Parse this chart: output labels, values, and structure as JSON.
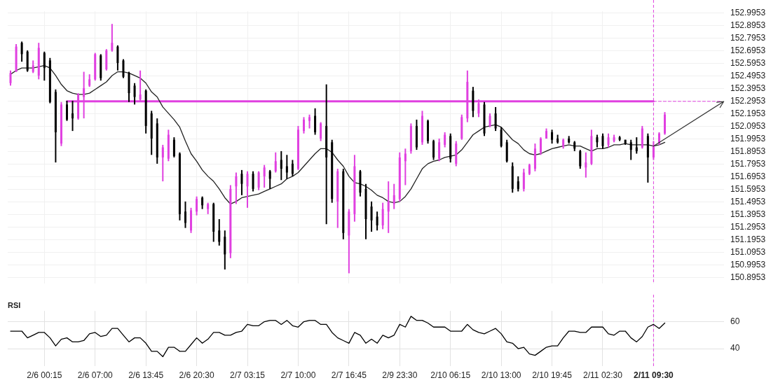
{
  "chart_data": [
    {
      "type": "candlestick",
      "categories": [
        null,
        null,
        null,
        null,
        null,
        null,
        "2/6 00:15",
        null,
        null,
        null,
        null,
        null,
        null,
        null,
        null,
        "2/6 07:00",
        null,
        null,
        null,
        null,
        null,
        null,
        null,
        null,
        "2/6 13:45",
        null,
        null,
        null,
        null,
        null,
        null,
        null,
        null,
        "2/6 20:30",
        null,
        null,
        null,
        null,
        null,
        null,
        null,
        null,
        "2/7 03:15",
        null,
        null,
        null,
        null,
        null,
        null,
        null,
        null,
        "2/7 10:00",
        null,
        null,
        null,
        null,
        null,
        null,
        null,
        null,
        "2/7 16:45",
        null,
        null,
        null,
        null,
        null,
        null,
        null,
        null,
        "2/9 23:30",
        null,
        null,
        null,
        null,
        null,
        null,
        null,
        null,
        "2/10 06:15",
        null,
        null,
        null,
        null,
        null,
        null,
        null,
        null,
        "2/10 13:00",
        null,
        null,
        null,
        null,
        null,
        null,
        null,
        null,
        "2/10 19:45",
        null,
        null,
        null,
        null,
        null,
        null,
        null,
        null,
        "2/11 02:30",
        null,
        null,
        null,
        null,
        null,
        null,
        null,
        null,
        "2/11 09:30",
        null,
        null,
        null,
        null,
        null,
        null,
        null,
        null,
        null,
        null,
        null,
        null
      ],
      "ohlc": [
        [
          152.44,
          152.54,
          152.42,
          152.52
        ],
        [
          152.53,
          152.75,
          152.53,
          152.73
        ],
        [
          152.76,
          152.77,
          152.61,
          152.67
        ],
        [
          152.69,
          152.7,
          152.53,
          152.54
        ],
        [
          152.53,
          152.62,
          152.52,
          152.58
        ],
        [
          152.5,
          152.76,
          152.47,
          152.72
        ],
        [
          152.68,
          152.69,
          152.46,
          152.56
        ],
        [
          152.62,
          152.64,
          152.28,
          152.29
        ],
        [
          152.37,
          152.39,
          151.81,
          152.05
        ],
        [
          151.96,
          152.29,
          151.94,
          152.27
        ],
        [
          152.27,
          152.3,
          152.14,
          152.15
        ],
        [
          152.2,
          152.3,
          152.06,
          152.16
        ],
        [
          152.16,
          152.36,
          152.15,
          152.35
        ],
        [
          152.33,
          152.53,
          152.16,
          152.4
        ],
        [
          152.42,
          152.51,
          152.41,
          152.47
        ],
        [
          152.47,
          152.68,
          152.46,
          152.67
        ],
        [
          152.66,
          152.67,
          152.46,
          152.48
        ],
        [
          152.55,
          152.71,
          152.54,
          152.7
        ],
        [
          152.7,
          152.91,
          152.69,
          152.76
        ],
        [
          152.73,
          152.74,
          152.54,
          152.6
        ],
        [
          152.62,
          152.63,
          152.48,
          152.49
        ],
        [
          152.52,
          152.53,
          152.29,
          152.36
        ],
        [
          152.42,
          152.44,
          152.27,
          152.33
        ],
        [
          152.31,
          152.54,
          152.29,
          152.35
        ],
        [
          152.38,
          152.39,
          152.04,
          152.1
        ],
        [
          152.2,
          152.22,
          151.87,
          152.0
        ],
        [
          152.12,
          152.16,
          151.8,
          151.85
        ],
        [
          151.85,
          151.95,
          151.66,
          151.93
        ],
        [
          151.84,
          152.07,
          151.82,
          152.03
        ],
        [
          151.99,
          152.01,
          151.85,
          151.86
        ],
        [
          151.88,
          151.89,
          151.35,
          151.4
        ],
        [
          151.42,
          151.5,
          151.29,
          151.33
        ],
        [
          151.27,
          151.45,
          151.25,
          151.43
        ],
        [
          151.42,
          151.54,
          151.39,
          151.52
        ],
        [
          151.53,
          151.54,
          151.44,
          151.47
        ],
        [
          151.44,
          151.49,
          151.4,
          151.48
        ],
        [
          151.48,
          151.49,
          151.18,
          151.26
        ],
        [
          151.27,
          151.36,
          151.15,
          151.18
        ],
        [
          151.22,
          151.27,
          150.96,
          151.08
        ],
        [
          151.09,
          151.63,
          151.05,
          151.6
        ],
        [
          151.62,
          151.73,
          151.48,
          151.7
        ],
        [
          151.72,
          151.75,
          151.55,
          151.64
        ],
        [
          151.62,
          151.74,
          151.45,
          151.72
        ],
        [
          151.72,
          151.74,
          151.58,
          151.6
        ],
        [
          151.61,
          151.74,
          151.59,
          151.73
        ],
        [
          151.7,
          151.79,
          151.61,
          151.77
        ],
        [
          151.74,
          151.75,
          151.6,
          151.68
        ],
        [
          151.74,
          151.89,
          151.73,
          151.82
        ],
        [
          151.83,
          151.9,
          151.67,
          151.76
        ],
        [
          151.78,
          151.87,
          151.68,
          151.73
        ],
        [
          151.8,
          151.83,
          151.7,
          151.72
        ],
        [
          151.76,
          152.1,
          151.75,
          152.07
        ],
        [
          152.06,
          152.17,
          152.04,
          152.15
        ],
        [
          152.14,
          152.19,
          152.08,
          152.17
        ],
        [
          152.18,
          152.24,
          152.03,
          152.05
        ],
        [
          152.0,
          152.13,
          151.98,
          152.12
        ],
        [
          152.1,
          152.43,
          151.32,
          151.85
        ],
        [
          151.97,
          151.99,
          151.49,
          151.52
        ],
        [
          151.5,
          151.76,
          151.29,
          151.74
        ],
        [
          151.74,
          151.76,
          151.2,
          151.25
        ],
        [
          151.23,
          151.44,
          150.93,
          151.42
        ],
        [
          151.4,
          151.87,
          151.34,
          151.78
        ],
        [
          151.74,
          151.75,
          151.54,
          151.57
        ],
        [
          151.6,
          151.64,
          151.2,
          151.36
        ],
        [
          151.46,
          151.5,
          151.26,
          151.35
        ],
        [
          151.38,
          151.42,
          151.27,
          151.31
        ],
        [
          151.31,
          151.49,
          151.28,
          151.44
        ],
        [
          151.42,
          151.66,
          151.25,
          151.5
        ],
        [
          151.48,
          151.64,
          151.44,
          151.55
        ],
        [
          151.52,
          151.89,
          151.5,
          151.85
        ],
        [
          151.82,
          151.92,
          151.63,
          151.88
        ],
        [
          151.9,
          152.12,
          151.88,
          152.1
        ],
        [
          152.1,
          152.15,
          151.91,
          151.93
        ],
        [
          151.97,
          152.22,
          151.95,
          152.18
        ],
        [
          152.14,
          152.15,
          151.96,
          151.98
        ],
        [
          151.98,
          151.99,
          151.83,
          151.85
        ],
        [
          151.84,
          152.0,
          151.82,
          151.97
        ],
        [
          151.95,
          152.05,
          151.93,
          152.03
        ],
        [
          152.02,
          152.04,
          151.81,
          151.84
        ],
        [
          151.8,
          151.98,
          151.78,
          151.96
        ],
        [
          152.0,
          152.19,
          151.99,
          152.17
        ],
        [
          152.16,
          152.54,
          152.13,
          152.45
        ],
        [
          152.38,
          152.41,
          152.17,
          152.22
        ],
        [
          152.2,
          152.31,
          152.17,
          152.28
        ],
        [
          152.27,
          152.29,
          152.02,
          152.04
        ],
        [
          152.1,
          152.2,
          152.09,
          152.18
        ],
        [
          152.2,
          152.25,
          152.06,
          152.08
        ],
        [
          152.07,
          152.09,
          151.93,
          151.94
        ],
        [
          151.97,
          151.99,
          151.81,
          151.82
        ],
        [
          151.78,
          151.81,
          151.57,
          151.6
        ],
        [
          151.66,
          151.7,
          151.58,
          151.6
        ],
        [
          151.6,
          151.76,
          151.58,
          151.73
        ],
        [
          151.72,
          151.8,
          151.71,
          151.79
        ],
        [
          151.76,
          151.96,
          151.74,
          151.92
        ],
        [
          151.89,
          152.01,
          151.87,
          152.0
        ],
        [
          152.0,
          152.08,
          152.0,
          152.06
        ],
        [
          152.05,
          152.07,
          151.96,
          151.99
        ],
        [
          152.0,
          152.03,
          151.96,
          151.97
        ],
        [
          151.94,
          152.0,
          151.92,
          151.99
        ],
        [
          152.0,
          152.02,
          151.96,
          151.97
        ],
        [
          151.97,
          151.98,
          151.9,
          151.92
        ],
        [
          151.9,
          151.91,
          151.76,
          151.78
        ],
        [
          151.77,
          151.89,
          151.69,
          151.81
        ],
        [
          151.8,
          152.07,
          151.79,
          152.02
        ],
        [
          152.01,
          152.03,
          151.93,
          151.97
        ],
        [
          152.02,
          152.04,
          151.92,
          151.94
        ],
        [
          151.95,
          152.04,
          151.93,
          152.01
        ],
        [
          151.98,
          152.03,
          151.97,
          152.01
        ],
        [
          152.01,
          152.02,
          151.98,
          151.99
        ],
        [
          151.99,
          151.99,
          151.95,
          151.96
        ],
        [
          151.97,
          151.99,
          151.83,
          151.91
        ],
        [
          151.93,
          152.01,
          151.88,
          151.9
        ],
        [
          151.93,
          152.1,
          151.92,
          152.08
        ],
        [
          152.02,
          152.04,
          151.65,
          151.85
        ],
        [
          151.85,
          151.98,
          151.83,
          151.95
        ],
        [
          151.96,
          152.05,
          151.95,
          152.04
        ],
        [
          152.04,
          152.21,
          152.03,
          152.19
        ],
        null,
        null,
        null,
        null,
        null,
        null,
        null,
        null,
        null,
        null
      ],
      "colors": [
        "#e040e0",
        "#e040e0",
        "#000000",
        "#000000",
        "#e040e0",
        "#e040e0",
        "#000000",
        "#000000",
        "#000000",
        "#e040e0",
        "#000000",
        "#000000",
        "#e040e0",
        "#e040e0",
        "#e040e0",
        "#e040e0",
        "#000000",
        "#e040e0",
        "#e040e0",
        "#000000",
        "#000000",
        "#000000",
        "#000000",
        "#e040e0",
        "#000000",
        "#000000",
        "#000000",
        "#e040e0",
        "#e040e0",
        "#000000",
        "#000000",
        "#000000",
        "#e040e0",
        "#e040e0",
        "#000000",
        "#e040e0",
        "#000000",
        "#000000",
        "#000000",
        "#e040e0",
        "#e040e0",
        "#000000",
        "#e040e0",
        "#000000",
        "#e040e0",
        "#e040e0",
        "#000000",
        "#e040e0",
        "#000000",
        "#000000",
        "#000000",
        "#e040e0",
        "#e040e0",
        "#e040e0",
        "#000000",
        "#e040e0",
        "#000000",
        "#000000",
        "#e040e0",
        "#000000",
        "#e040e0",
        "#e040e0",
        "#000000",
        "#000000",
        "#000000",
        "#000000",
        "#e040e0",
        "#e040e0",
        "#e040e0",
        "#e040e0",
        "#e040e0",
        "#e040e0",
        "#000000",
        "#e040e0",
        "#000000",
        "#000000",
        "#e040e0",
        "#e040e0",
        "#000000",
        "#e040e0",
        "#e040e0",
        "#e040e0",
        "#000000",
        "#e040e0",
        "#000000",
        "#e040e0",
        "#000000",
        "#000000",
        "#000000",
        "#000000",
        "#000000",
        "#e040e0",
        "#e040e0",
        "#e040e0",
        "#e040e0",
        "#e040e0",
        "#000000",
        "#000000",
        "#e040e0",
        "#000000",
        "#000000",
        "#000000",
        "#e040e0",
        "#e040e0",
        "#000000",
        "#000000",
        "#e040e0",
        "#e040e0",
        "#000000",
        "#000000",
        "#000000",
        "#000000",
        "#e040e0",
        "#000000",
        "#e040e0",
        "#e040e0",
        "#e040e0",
        null,
        null,
        null,
        null,
        null,
        null,
        null,
        null,
        null,
        null
      ],
      "series": [
        {
          "type": "line",
          "color": "#222222",
          "values": [
            152.51,
            152.54,
            152.56,
            152.56,
            152.56,
            152.57,
            152.58,
            152.56,
            152.5,
            152.43,
            152.38,
            152.36,
            152.35,
            152.35,
            152.36,
            152.39,
            152.42,
            152.45,
            152.5,
            152.53,
            152.53,
            152.52,
            152.5,
            152.48,
            152.44,
            152.37,
            152.33,
            152.25,
            152.2,
            152.15,
            152.09,
            151.98,
            151.88,
            151.82,
            151.75,
            151.7,
            151.66,
            151.6,
            151.53,
            151.48,
            151.5,
            151.53,
            151.54,
            151.55,
            151.56,
            151.58,
            151.6,
            151.62,
            151.64,
            151.68,
            151.7,
            151.73,
            151.78,
            151.83,
            151.88,
            151.92,
            151.92,
            151.89,
            151.83,
            151.78,
            151.7,
            151.65,
            151.64,
            151.62,
            151.59,
            151.55,
            151.53,
            151.5,
            151.49,
            151.5,
            151.54,
            151.6,
            151.68,
            151.76,
            151.8,
            151.82,
            151.83,
            151.85,
            151.86,
            151.87,
            151.91,
            151.97,
            152.03,
            152.06,
            152.09,
            152.1,
            152.11,
            152.09,
            152.04,
            151.99,
            151.96,
            151.91,
            151.88,
            151.87,
            151.88,
            151.9,
            151.92,
            151.93,
            151.94,
            151.95,
            151.94,
            151.94,
            151.92,
            151.9,
            151.92,
            151.92,
            151.93,
            151.95,
            151.95,
            151.96,
            151.95,
            151.95,
            151.95,
            151.95,
            151.94,
            151.95,
            151.97,
            null,
            null,
            null,
            null,
            null,
            null,
            null,
            null,
            null,
            null
          ]
        },
        {
          "type": "line",
          "color": "#e040e0",
          "values": [
            null,
            null,
            null,
            null,
            null,
            null,
            null,
            null,
            null,
            null,
            152.2953,
            152.2953,
            152.2953,
            152.2953,
            152.2953,
            152.2953,
            152.2953,
            152.2953,
            152.2953,
            152.2953,
            152.2953,
            152.2953,
            152.2953,
            152.2953,
            152.2953,
            152.2953,
            152.2953,
            152.2953,
            152.2953,
            152.2953,
            152.2953,
            152.2953,
            152.2953,
            152.2953,
            152.2953,
            152.2953,
            152.2953,
            152.2953,
            152.2953,
            152.2953,
            152.2953,
            152.2953,
            152.2953,
            152.2953,
            152.2953,
            152.2953,
            152.2953,
            152.2953,
            152.2953,
            152.2953,
            152.2953,
            152.2953,
            152.2953,
            152.2953,
            152.2953,
            152.2953,
            152.2953,
            152.2953,
            152.2953,
            152.2953,
            152.2953,
            152.2953,
            152.2953,
            152.2953,
            152.2953,
            152.2953,
            152.2953,
            152.2953,
            152.2953,
            152.2953,
            152.2953,
            152.2953,
            152.2953,
            152.2953,
            152.2953,
            152.2953,
            152.2953,
            152.2953,
            152.2953,
            152.2953,
            152.2953,
            152.2953,
            152.2953,
            152.2953,
            152.2953,
            152.2953,
            152.2953,
            152.2953,
            152.2953,
            152.2953,
            152.2953,
            152.2953,
            152.2953,
            152.2953,
            152.2953,
            152.2953,
            152.2953,
            152.2953,
            152.2953,
            152.2953,
            152.2953,
            152.2953,
            152.2953,
            152.2953,
            152.2953,
            152.2953,
            152.2953,
            152.2953,
            152.2953,
            152.2953,
            152.2953,
            152.2953,
            152.2953,
            152.2953,
            152.2953,
            null,
            null,
            null,
            null,
            null,
            null,
            null,
            null,
            null,
            null,
            null,
            null
          ]
        },
        {
          "type": "line",
          "color": "#e040e0",
          "line_style": "dashed",
          "values": [
            null,
            null,
            null,
            null,
            null,
            null,
            null,
            null,
            null,
            null,
            null,
            null,
            null,
            null,
            null,
            null,
            null,
            null,
            null,
            null,
            null,
            null,
            null,
            null,
            null,
            null,
            null,
            null,
            null,
            null,
            null,
            null,
            null,
            null,
            null,
            null,
            null,
            null,
            null,
            null,
            null,
            null,
            null,
            null,
            null,
            null,
            null,
            null,
            null,
            null,
            null,
            null,
            null,
            null,
            null,
            null,
            null,
            null,
            null,
            null,
            null,
            null,
            null,
            null,
            null,
            null,
            null,
            null,
            null,
            null,
            null,
            null,
            null,
            null,
            null,
            null,
            null,
            null,
            null,
            null,
            null,
            null,
            null,
            null,
            null,
            null,
            null,
            null,
            null,
            null,
            null,
            null,
            null,
            null,
            null,
            null,
            null,
            null,
            null,
            null,
            null,
            null,
            null,
            null,
            null,
            null,
            null,
            null,
            null,
            null,
            null,
            null,
            null,
            null,
            152.2953,
            152.2953,
            152.2953,
            152.2953,
            152.2953,
            152.2953,
            152.2953,
            152.2953,
            152.2953,
            152.2953,
            152.2953,
            152.2953,
            152.2953
          ]
        }
      ],
      "ylim": [
        150.85,
        153.01
      ],
      "yticks": [
        150.8953,
        150.9953,
        151.0953,
        151.1953,
        151.2953,
        151.3953,
        151.4953,
        151.5953,
        151.6953,
        151.7953,
        151.8953,
        151.9953,
        152.0953,
        152.1953,
        152.2953,
        152.3953,
        152.4953,
        152.5953,
        152.6953,
        152.7953,
        152.8953,
        152.9953
      ],
      "grid": true,
      "tick_labels": "y",
      "marker": "none",
      "ref_lines": [
        {
          "axis": "x",
          "value": "2/11 09:30",
          "color": "#e040e0",
          "line_style": "dashed"
        }
      ]
    },
    {
      "type": "line",
      "title": "RSI",
      "categories": [
        null,
        null,
        null,
        null,
        null,
        null,
        "2/6 00:15",
        null,
        null,
        null,
        null,
        null,
        null,
        null,
        null,
        "2/6 07:00",
        null,
        null,
        null,
        null,
        null,
        null,
        null,
        null,
        "2/6 13:45",
        null,
        null,
        null,
        null,
        null,
        null,
        null,
        null,
        "2/6 20:30",
        null,
        null,
        null,
        null,
        null,
        null,
        null,
        null,
        "2/7 03:15",
        null,
        null,
        null,
        null,
        null,
        null,
        null,
        null,
        "2/7 10:00",
        null,
        null,
        null,
        null,
        null,
        null,
        null,
        null,
        "2/7 16:45",
        null,
        null,
        null,
        null,
        null,
        null,
        null,
        null,
        "2/9 23:30",
        null,
        null,
        null,
        null,
        null,
        null,
        null,
        null,
        "2/10 06:15",
        null,
        null,
        null,
        null,
        null,
        null,
        null,
        null,
        "2/10 13:00",
        null,
        null,
        null,
        null,
        null,
        null,
        null,
        null,
        "2/10 19:45",
        null,
        null,
        null,
        null,
        null,
        null,
        null,
        null,
        "2/11 02:30",
        null,
        null,
        null,
        null,
        null,
        null,
        null,
        null,
        "2/11 09:30",
        null,
        null,
        null,
        null,
        null,
        null,
        null,
        null,
        null,
        null,
        null,
        null
      ],
      "values": [
        53,
        53,
        53,
        48,
        50,
        52,
        52,
        48,
        42,
        47,
        48,
        45,
        45,
        46,
        51,
        52,
        49,
        50,
        55,
        55,
        50,
        45,
        48,
        48,
        44,
        38,
        38,
        34,
        41,
        41,
        38,
        38,
        43,
        48,
        44,
        47,
        52,
        52,
        50,
        50,
        52,
        53,
        58,
        57,
        57,
        60,
        61,
        61,
        58,
        61,
        57,
        56,
        60,
        61,
        61,
        58,
        58,
        52,
        48,
        46,
        44,
        52,
        50,
        44,
        47,
        44,
        50,
        48,
        50,
        58,
        56,
        64,
        61,
        61,
        59,
        56,
        56,
        56,
        53,
        53,
        53,
        58,
        54,
        52,
        51,
        53,
        55,
        51,
        45,
        44,
        40,
        41,
        36,
        35,
        38,
        41,
        42,
        42,
        48,
        53,
        53,
        52,
        52,
        56,
        56,
        56,
        51,
        50,
        53,
        53,
        48,
        45,
        49,
        56,
        58,
        55,
        59,
        null,
        null,
        null,
        null,
        null,
        null,
        null,
        null,
        null,
        null
      ],
      "color": "#000000",
      "ylim": [
        27,
        68
      ],
      "yticks": [
        40,
        60
      ],
      "grid": true,
      "marker": "none",
      "ref_lines": [
        {
          "axis": "x",
          "value": "2/11 09:30",
          "color": "#e040e0",
          "line_style": "dashed"
        }
      ]
    }
  ]
}
